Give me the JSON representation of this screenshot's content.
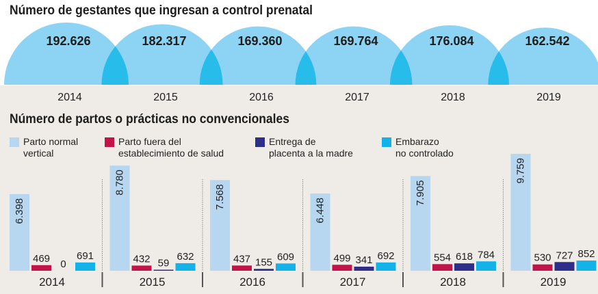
{
  "colors": {
    "circle": "#8dd3f3",
    "circle_overlap": "#27bce9",
    "parto_normal_vertical": "#b7d6ef",
    "parto_fuera": "#c2134b",
    "entrega_placenta": "#2d2e8a",
    "embarazo_no_controlado": "#13b2e8"
  },
  "chart_data": [
    {
      "type": "area",
      "title": "Número de gestantes que ingresan a control prenatal",
      "categories": [
        "2014",
        "2015",
        "2016",
        "2017",
        "2018",
        "2019"
      ],
      "values": [
        192626,
        182317,
        169360,
        169764,
        176084,
        162542
      ],
      "value_labels": [
        "192.626",
        "182.317",
        "169.360",
        "169.764",
        "176.084",
        "162.542"
      ]
    },
    {
      "type": "bar",
      "title": "Número de partos o prácticas no convencionales",
      "categories": [
        "2014",
        "2015",
        "2016",
        "2017",
        "2018",
        "2019"
      ],
      "legend": [
        "Parto normal vertical",
        "Parto fuera del establecimiento de salud",
        "Entrega de placenta a la madre",
        "Embarazo no controlado"
      ],
      "legend_lines": [
        [
          "Parto normal",
          "vertical"
        ],
        [
          "Parto fuera del",
          "establecimiento de salud"
        ],
        [
          "Entrega de",
          "placenta a la madre"
        ],
        [
          "Embarazo",
          "no controlado"
        ]
      ],
      "series": [
        {
          "name": "Parto normal vertical",
          "values": [
            6398,
            8780,
            7568,
            6448,
            7905,
            9759
          ],
          "labels": [
            "6.398",
            "8.780",
            "7.568",
            "6.448",
            "7.905",
            "9.759"
          ]
        },
        {
          "name": "Parto fuera del establecimiento de salud",
          "values": [
            469,
            432,
            437,
            499,
            554,
            530
          ],
          "labels": [
            "469",
            "432",
            "437",
            "499",
            "554",
            "530"
          ]
        },
        {
          "name": "Entrega de placenta a la madre",
          "values": [
            0,
            59,
            155,
            341,
            618,
            727
          ],
          "labels": [
            "0",
            "59",
            "155",
            "341",
            "618",
            "727"
          ]
        },
        {
          "name": "Embarazo no controlado",
          "values": [
            691,
            632,
            609,
            692,
            784,
            852
          ],
          "labels": [
            "691",
            "632",
            "609",
            "692",
            "784",
            "852"
          ]
        }
      ]
    }
  ]
}
